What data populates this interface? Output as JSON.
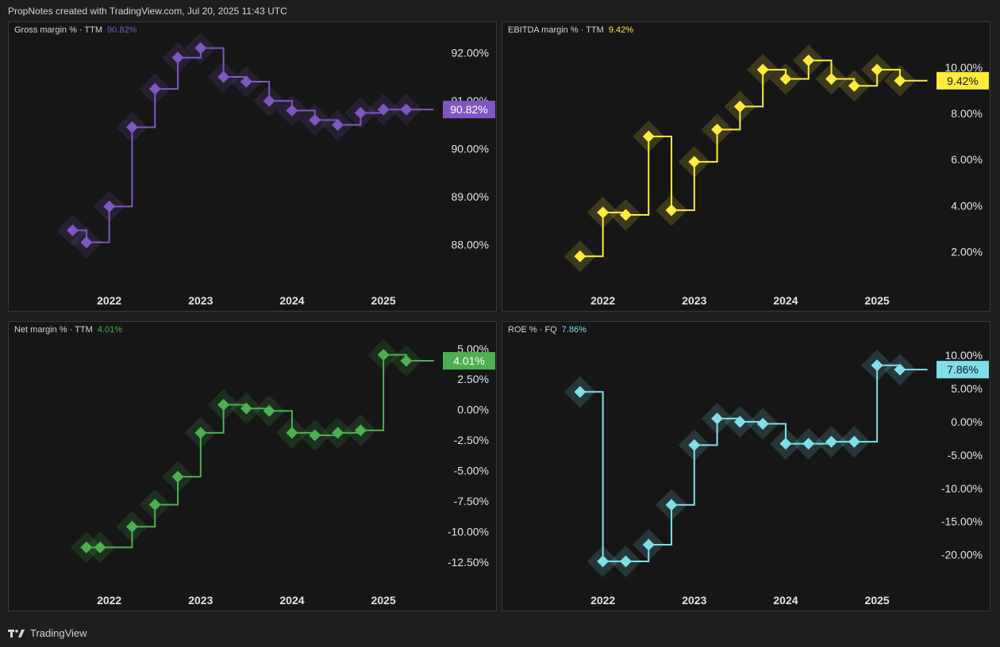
{
  "header": {
    "text": "PropNotes created with TradingView.com, Jul 20, 2025 11:43 UTC"
  },
  "footer": {
    "brand": "TradingView",
    "logo_icon": "tradingview-logo-icon"
  },
  "chart_data": [
    {
      "type": "line",
      "title": "Gross margin % · TTM",
      "current_label": "90.82%",
      "color": "#7e57c2",
      "badge_text_color": "#ffffff",
      "yticks": [
        "92.00%",
        "91.00%",
        "90.00%",
        "89.00%",
        "88.00%"
      ],
      "ytick_values": [
        92,
        91,
        90,
        89,
        88
      ],
      "ylim": [
        87.02,
        92.64
      ],
      "xticks": [
        "2022",
        "2023",
        "2024",
        "2025"
      ],
      "xtick_values": [
        2022.0,
        2023.0,
        2024.0,
        2025.0
      ],
      "xlim": [
        2020.9,
        2025.85
      ],
      "current_value": 90.82,
      "x": [
        2021.6,
        2021.75,
        2022.0,
        2022.25,
        2022.5,
        2022.75,
        2023.0,
        2023.25,
        2023.5,
        2023.75,
        2024.0,
        2024.25,
        2024.5,
        2024.75,
        2025.0,
        2025.25
      ],
      "values": [
        88.3,
        88.05,
        88.8,
        90.45,
        91.25,
        91.9,
        92.1,
        91.5,
        91.4,
        91.0,
        90.8,
        90.6,
        90.5,
        90.75,
        90.82,
        90.82
      ],
      "line_end_x": 2025.55
    },
    {
      "type": "line",
      "title": "EBITDA margin % · TTM",
      "current_label": "9.42%",
      "color": "#ffeb3b",
      "badge_text_color": "#131722",
      "yticks": [
        "10.00%",
        "8.00%",
        "6.00%",
        "4.00%",
        "2.00%"
      ],
      "ytick_values": [
        10,
        8,
        6,
        4,
        2
      ],
      "ylim": [
        0.26,
        11.96
      ],
      "xticks": [
        "2022",
        "2023",
        "2024",
        "2025"
      ],
      "xtick_values": [
        2022.0,
        2023.0,
        2024.0,
        2025.0
      ],
      "xlim": [
        2020.9,
        2025.85
      ],
      "current_value": 9.42,
      "x": [
        2021.75,
        2022.0,
        2022.25,
        2022.5,
        2022.75,
        2023.0,
        2023.25,
        2023.5,
        2023.75,
        2024.0,
        2024.25,
        2024.5,
        2024.75,
        2025.0,
        2025.25
      ],
      "values": [
        1.8,
        3.7,
        3.6,
        7.0,
        3.8,
        5.9,
        7.3,
        8.3,
        9.9,
        9.5,
        10.3,
        9.5,
        9.2,
        9.9,
        9.42
      ],
      "line_end_x": 2025.55
    },
    {
      "type": "line",
      "title": "Net margin % · TTM",
      "current_label": "4.01%",
      "color": "#4caf50",
      "badge_text_color": "#ffffff",
      "yticks": [
        "5.00%",
        "2.50%",
        "0.00%",
        "-2.50%",
        "-5.00%",
        "-7.50%",
        "-10.00%",
        "-12.50%"
      ],
      "ytick_values": [
        5,
        2.5,
        0,
        -2.5,
        -5,
        -7.5,
        -10,
        -12.5
      ],
      "ylim": [
        -14.92,
        7.2
      ],
      "xticks": [
        "2022",
        "2023",
        "2024",
        "2025"
      ],
      "xtick_values": [
        2022.0,
        2023.0,
        2024.0,
        2025.0
      ],
      "xlim": [
        2020.9,
        2025.85
      ],
      "current_value": 4.01,
      "x": [
        2021.75,
        2021.9,
        2022.25,
        2022.5,
        2022.75,
        2023.0,
        2023.25,
        2023.5,
        2023.75,
        2024.0,
        2024.25,
        2024.5,
        2024.75,
        2025.0,
        2025.25
      ],
      "values": [
        -11.3,
        -11.3,
        -9.6,
        -7.8,
        -5.5,
        -1.9,
        0.4,
        0.1,
        -0.1,
        -1.9,
        -2.1,
        -1.9,
        -1.7,
        4.5,
        4.01
      ],
      "line_end_x": 2025.55
    },
    {
      "type": "line",
      "title": "ROE % · FQ",
      "current_label": "7.86%",
      "color": "#80deea",
      "badge_text_color": "#131722",
      "yticks": [
        "10.00%",
        "5.00%",
        "0.00%",
        "-5.00%",
        "-10.00%",
        "-15.00%",
        "-20.00%"
      ],
      "ytick_values": [
        10,
        5,
        0,
        -5,
        -10,
        -15,
        -20
      ],
      "ylim": [
        -25.54,
        15.04
      ],
      "xticks": [
        "2022",
        "2023",
        "2024",
        "2025"
      ],
      "xtick_values": [
        2022.0,
        2023.0,
        2024.0,
        2025.0
      ],
      "xlim": [
        2020.9,
        2025.85
      ],
      "current_value": 7.86,
      "x": [
        2021.75,
        2022.0,
        2022.25,
        2022.5,
        2022.75,
        2023.0,
        2023.25,
        2023.5,
        2023.75,
        2024.0,
        2024.25,
        2024.5,
        2024.75,
        2025.0,
        2025.25
      ],
      "values": [
        4.5,
        -21.0,
        -21.0,
        -18.5,
        -12.5,
        -3.5,
        0.5,
        0.0,
        -0.3,
        -3.3,
        -3.3,
        -3.0,
        -3.0,
        8.5,
        7.86
      ],
      "line_end_x": 2025.55
    }
  ]
}
